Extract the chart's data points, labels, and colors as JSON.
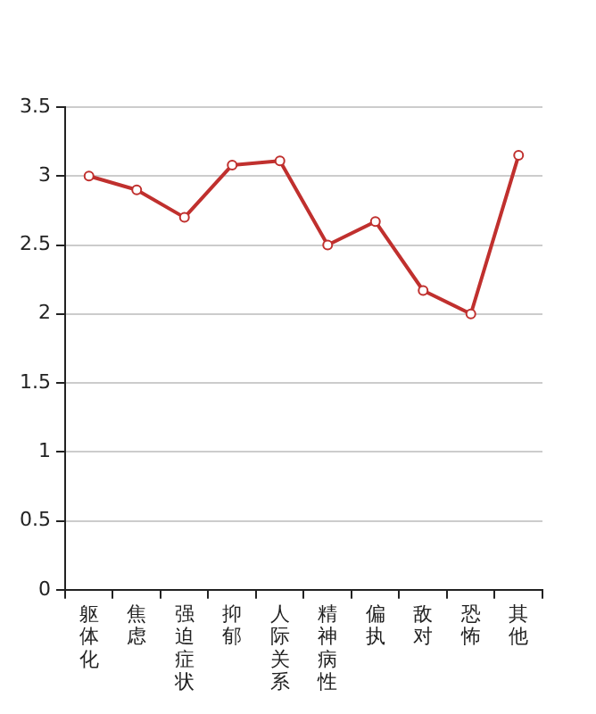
{
  "chart_data": {
    "type": "line",
    "categories": [
      "躯体化",
      "焦虑",
      "强迫症状",
      "抑郁",
      "人际关系",
      "精神病性",
      "偏执",
      "敌对",
      "恐怖",
      "其他"
    ],
    "series": [
      {
        "color": "#c0302e",
        "values": [
          3.0,
          2.9,
          2.7,
          3.08,
          3.11,
          2.5,
          2.67,
          2.17,
          2.0,
          3.15
        ]
      }
    ],
    "ylim": [
      0,
      3.5
    ],
    "yticks": [
      0,
      0.5,
      1,
      1.5,
      2,
      2.5,
      3,
      3.5
    ],
    "grid": "y",
    "legend": false,
    "marker": "circle",
    "line_style": "solid"
  }
}
